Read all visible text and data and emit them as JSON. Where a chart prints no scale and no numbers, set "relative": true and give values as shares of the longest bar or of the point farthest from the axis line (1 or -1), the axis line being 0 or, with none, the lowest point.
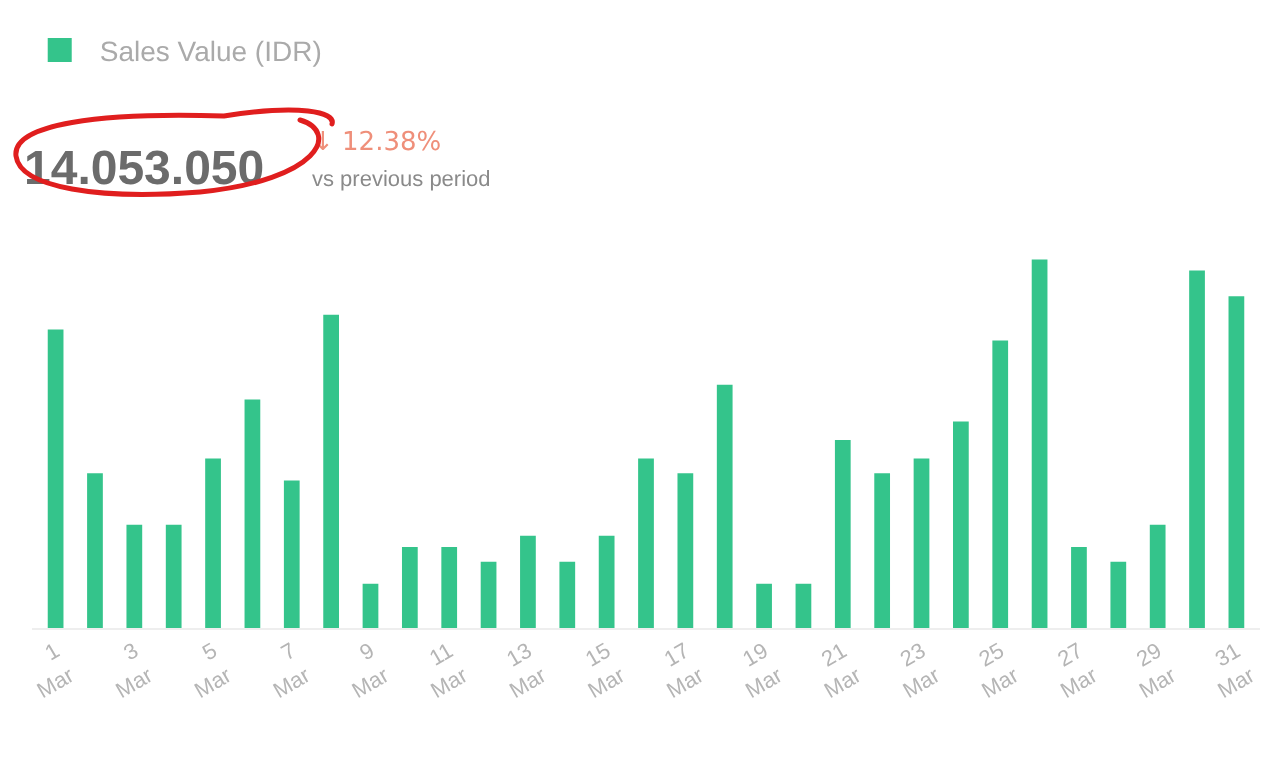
{
  "chart_data": {
    "type": "bar",
    "relative": true,
    "legend": "top left",
    "grid": false,
    "categories": [
      "1 Mar",
      null,
      "3 Mar",
      null,
      "5 Mar",
      null,
      "7 Mar",
      null,
      "9 Mar",
      null,
      "11 Mar",
      null,
      "13 Mar",
      null,
      "15 Mar",
      null,
      "17 Mar",
      null,
      "19 Mar",
      null,
      "21 Mar",
      null,
      "23 Mar",
      null,
      "25 Mar",
      null,
      "27 Mar",
      null,
      "29 Mar",
      null,
      "31 Mar"
    ],
    "series": [
      {
        "name": "Sales Value (IDR)",
        "color": "#34c48b",
        "values": [
          0.81,
          0.42,
          0.28,
          0.28,
          0.46,
          0.62,
          0.4,
          0.85,
          0.12,
          0.22,
          0.22,
          0.18,
          0.25,
          0.18,
          0.25,
          0.46,
          0.42,
          0.66,
          0.12,
          0.12,
          0.51,
          0.42,
          0.46,
          0.56,
          0.78,
          1,
          0.22,
          0.18,
          0.28,
          0.97,
          0.9
        ]
      }
    ],
    "annotations": [
      "14.053.050",
      "↓ 12.38%",
      "vs previous period"
    ]
  }
}
